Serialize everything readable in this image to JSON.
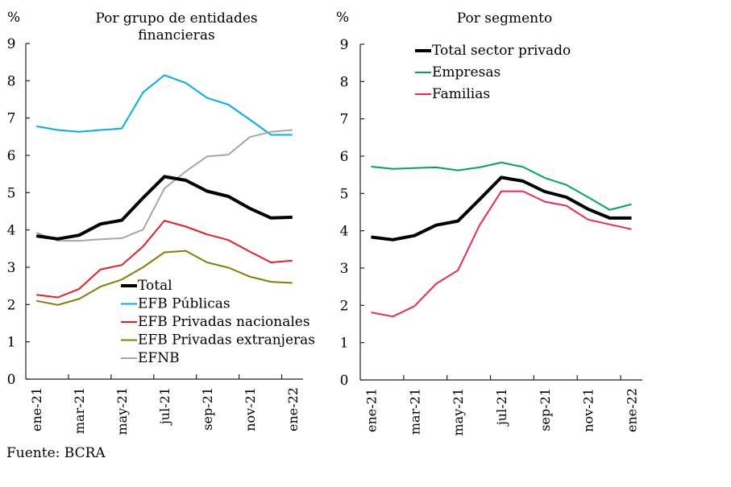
{
  "source": "Fuente: BCRA",
  "chart_data": [
    {
      "type": "line",
      "title": "Por grupo de entidades financieras",
      "title_lines": [
        "Por grupo de entidades",
        "financieras"
      ],
      "ylabel": "%",
      "xlabel": "",
      "ylim": [
        0,
        9
      ],
      "yticks": [
        "0",
        "1",
        "2",
        "3",
        "4",
        "5",
        "6",
        "7",
        "8",
        "9"
      ],
      "categories": [
        "ene-21",
        "feb-21",
        "mar-21",
        "abr-21",
        "may-21",
        "jun-21",
        "jul-21",
        "ago-21",
        "sep-21",
        "oct-21",
        "nov-21",
        "dic-21",
        "ene-22"
      ],
      "xtick_labels": [
        "ene-21",
        "mar-21",
        "may-21",
        "jul-21",
        "sep-21",
        "nov-21",
        "ene-22"
      ],
      "grid": false,
      "legend_position": "bottom-center",
      "series": [
        {
          "name": "Total",
          "color": "#000000",
          "bold": true,
          "values": [
            3.84,
            3.76,
            3.86,
            4.16,
            4.26,
            4.86,
            5.43,
            5.33,
            5.04,
            4.9,
            4.58,
            4.32,
            4.34
          ]
        },
        {
          "name": "EFB Públicas",
          "color": "#00AEEF",
          "bold": false,
          "values": [
            6.78,
            6.68,
            6.63,
            6.68,
            6.72,
            7.69,
            8.15,
            7.94,
            7.54,
            7.36,
            6.96,
            6.55,
            6.55
          ]
        },
        {
          "name": "EFB Privadas nacionales",
          "color": "#ED1C24",
          "bold": false,
          "values": [
            2.26,
            2.19,
            2.42,
            2.94,
            3.06,
            3.56,
            4.25,
            4.09,
            3.88,
            3.73,
            3.42,
            3.13,
            3.18
          ]
        },
        {
          "name": "EFB Privadas extranjeras",
          "color": "#808000",
          "bold": false,
          "values": [
            2.1,
            1.99,
            2.15,
            2.48,
            2.67,
            3.0,
            3.4,
            3.44,
            3.13,
            2.99,
            2.75,
            2.61,
            2.58
          ]
        },
        {
          "name": "EFNB",
          "color": "#A6A6A6",
          "bold": false,
          "values": [
            3.93,
            3.71,
            3.71,
            3.75,
            3.78,
            4.01,
            5.11,
            5.57,
            5.97,
            6.02,
            6.49,
            6.63,
            6.68
          ]
        }
      ]
    },
    {
      "type": "line",
      "title": "Por segmento",
      "title_lines": [
        "Por segmento"
      ],
      "ylabel": "%",
      "xlabel": "",
      "ylim": [
        0,
        9
      ],
      "yticks": [
        "0",
        "1",
        "2",
        "3",
        "4",
        "5",
        "6",
        "7",
        "8",
        "9"
      ],
      "categories": [
        "ene-21",
        "feb-21",
        "mar-21",
        "abr-21",
        "may-21",
        "jun-21",
        "jul-21",
        "ago-21",
        "sep-21",
        "oct-21",
        "nov-21",
        "dic-21",
        "ene-22"
      ],
      "xtick_labels": [
        "ene-21",
        "mar-21",
        "may-21",
        "jul-21",
        "sep-21",
        "nov-21",
        "ene-22"
      ],
      "grid": false,
      "legend_position": "top-left",
      "series": [
        {
          "name": "Total sector privado",
          "color": "#000000",
          "bold": true,
          "values": [
            3.83,
            3.76,
            3.87,
            4.15,
            4.26,
            4.84,
            5.43,
            5.33,
            5.05,
            4.9,
            4.58,
            4.34,
            4.34
          ]
        },
        {
          "name": "Empresas",
          "color": "#00A651",
          "bold": false,
          "values": [
            5.72,
            5.66,
            5.68,
            5.7,
            5.62,
            5.7,
            5.83,
            5.71,
            5.42,
            5.23,
            4.9,
            4.56,
            4.71
          ]
        },
        {
          "name": "Familias",
          "color": "#EE2A50",
          "bold": false,
          "values": [
            1.81,
            1.7,
            1.98,
            2.58,
            2.94,
            4.15,
            5.06,
            5.06,
            4.78,
            4.67,
            4.3,
            4.17,
            4.04
          ]
        }
      ]
    }
  ]
}
